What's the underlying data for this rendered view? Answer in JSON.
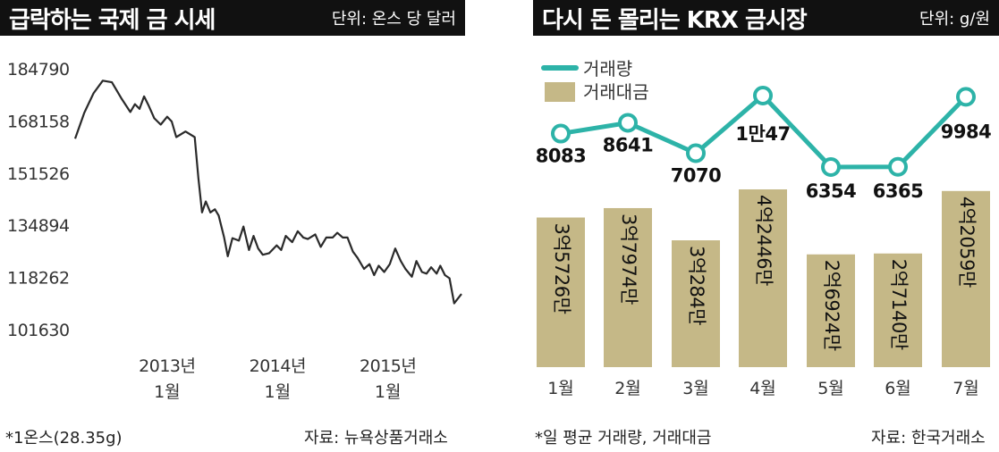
{
  "left_panel": {
    "title": "급락하는 국제 금 시세",
    "unit": "단위: 온스 당 달러",
    "footnote": "*1온스(28.35g)",
    "source": "자료: 뉴욕상품거래소"
  },
  "right_panel": {
    "title": "다시 돈 몰리는 KRX 금시장",
    "unit": "단위: g/원",
    "footnote": "*일 평균 거래량, 거래대금",
    "source": "자료: 한국거래소"
  },
  "colors": {
    "line_left": "#2a2a2a",
    "line_right": "#2db3a8",
    "bar": "#c5b887",
    "title_bg": "#111111"
  },
  "chart_data": [
    {
      "type": "line",
      "title": "급락하는 국제 금 시세",
      "unit": "단위: 온스 당 달러",
      "y_ticks": [
        184790,
        168158,
        151526,
        134894,
        118262,
        101630
      ],
      "ylim": [
        101630,
        184790
      ],
      "x_ticks": [
        {
          "x": 10,
          "line1": "2013년",
          "line2": "1월"
        },
        {
          "x": 22,
          "line1": "2014년",
          "line2": "1월"
        },
        {
          "x": 34,
          "line1": "2015년",
          "line2": "1월"
        }
      ],
      "grid": false,
      "series": [
        {
          "values": [
            [
              0,
              162500
            ],
            [
              1,
              170800
            ],
            [
              2,
              177000
            ],
            [
              3,
              181000
            ],
            [
              4,
              180500
            ],
            [
              5,
              175500
            ],
            [
              6,
              171000
            ],
            [
              6.5,
              173500
            ],
            [
              7,
              172000
            ],
            [
              7.5,
              176000
            ],
            [
              8,
              173000
            ],
            [
              8.6,
              169000
            ],
            [
              9.3,
              167000
            ],
            [
              10,
              169500
            ],
            [
              10.5,
              168000
            ],
            [
              11,
              163000
            ],
            [
              12,
              164800
            ],
            [
              13,
              163000
            ],
            [
              13.4,
              150000
            ],
            [
              13.8,
              139000
            ],
            [
              14.2,
              142500
            ],
            [
              14.7,
              139000
            ],
            [
              15.2,
              140000
            ],
            [
              15.6,
              138000
            ],
            [
              16.2,
              131000
            ],
            [
              16.6,
              125000
            ],
            [
              17.1,
              130800
            ],
            [
              17.8,
              130000
            ],
            [
              18.3,
              134500
            ],
            [
              18.9,
              127000
            ],
            [
              19.4,
              131500
            ],
            [
              19.9,
              127500
            ],
            [
              20.4,
              125500
            ],
            [
              21.1,
              126000
            ],
            [
              21.9,
              128500
            ],
            [
              22.4,
              127000
            ],
            [
              22.9,
              131500
            ],
            [
              23.6,
              129500
            ],
            [
              24.2,
              133000
            ],
            [
              24.8,
              131000
            ],
            [
              25.3,
              130500
            ],
            [
              26.1,
              132000
            ],
            [
              26.7,
              128000
            ],
            [
              27.3,
              131000
            ],
            [
              28,
              131000
            ],
            [
              28.5,
              132500
            ],
            [
              29.1,
              131000
            ],
            [
              29.6,
              131000
            ],
            [
              30.2,
              126500
            ],
            [
              30.7,
              124500
            ],
            [
              31.4,
              121000
            ],
            [
              32.0,
              122500
            ],
            [
              32.5,
              119000
            ],
            [
              33.0,
              122000
            ],
            [
              33.6,
              120000
            ],
            [
              34.2,
              122500
            ],
            [
              34.8,
              127500
            ],
            [
              35.4,
              123500
            ],
            [
              35.9,
              121000
            ],
            [
              36.6,
              118500
            ],
            [
              37.1,
              123500
            ],
            [
              37.7,
              120000
            ],
            [
              38.2,
              119500
            ],
            [
              38.7,
              121500
            ],
            [
              39.3,
              119500
            ],
            [
              39.7,
              122000
            ],
            [
              40.2,
              119000
            ],
            [
              40.7,
              118000
            ],
            [
              41.2,
              110000
            ],
            [
              42.0,
              113000
            ]
          ]
        }
      ]
    },
    {
      "type": "bar+line",
      "title": "다시 돈 몰리는 KRX 금시장",
      "unit": "단위: g/원",
      "categories": [
        "1월",
        "2월",
        "3월",
        "4월",
        "5월",
        "6월",
        "7월"
      ],
      "legend": [
        {
          "label": "거래량",
          "kind": "line"
        },
        {
          "label": "거래대금",
          "kind": "bar"
        }
      ],
      "legend_position": "top-left",
      "series": [
        {
          "name": "거래량",
          "kind": "line",
          "values": [
            8083,
            8641,
            7070,
            10047,
            6354,
            6365,
            9984
          ],
          "labels": [
            "8083",
            "8641",
            "7070",
            "1만47",
            "6354",
            "6365",
            "9984"
          ]
        },
        {
          "name": "거래대금",
          "kind": "bar",
          "values": [
            357260000,
            379740000,
            302840000,
            424460000,
            269240000,
            271400000,
            420590000
          ],
          "labels": [
            "3억5726만",
            "3억7974만",
            "3억284만",
            "4억2446만",
            "2억6924만",
            "2억7140만",
            "4억2059만"
          ]
        }
      ]
    }
  ]
}
